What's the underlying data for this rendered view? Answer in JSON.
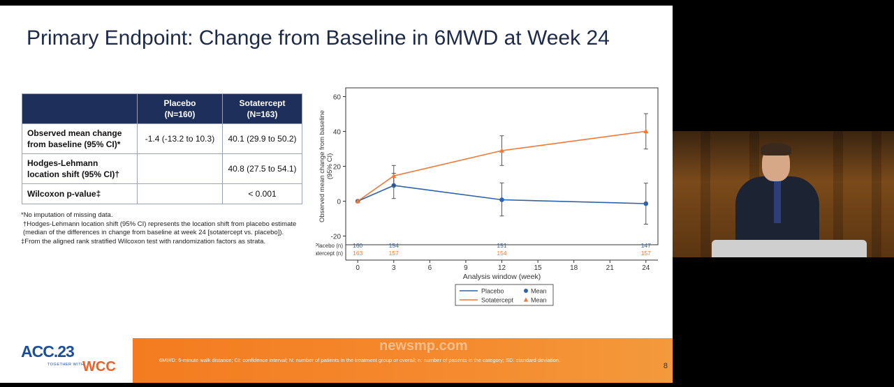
{
  "slide": {
    "title": "Primary Endpoint: Change from Baseline in 6MWD at Week 24",
    "page_number": "8",
    "bottom_note": "6MWD: 6-minute walk distance; CI: confidence interval; N: number of patients in the treatment group or overall; n: number of patients in the category; SD: standard deviation.",
    "watermark": "newsmp.com"
  },
  "logo": {
    "acc": "ACC.23",
    "sub": "TOGETHER WITH",
    "wcc": "WCC"
  },
  "table": {
    "headers": [
      "",
      "Placebo\n(N=160)",
      "Sotatercept\n(N=163)"
    ],
    "header_placebo_line1": "Placebo",
    "header_placebo_line2": "(N=160)",
    "header_sota_line1": "Sotatercept",
    "header_sota_line2": "(N=163)",
    "rows": [
      {
        "label1": "Observed mean change",
        "label2": "from baseline (95% CI)*",
        "placebo": "-1.4 (-13.2 to 10.3)",
        "sotatercept": "40.1 (29.9 to 50.2)"
      },
      {
        "label1": "Hodges-Lehmann",
        "label2": "location shift (95% CI)†",
        "placebo": "",
        "sotatercept": "40.8 (27.5 to 54.1)"
      },
      {
        "label1": "Wilcoxon p-value‡",
        "label2": "",
        "placebo": "",
        "sotatercept": "< 0.001"
      }
    ]
  },
  "footnotes": [
    "*No imputation of missing data.",
    "†Hodges-Lehmann location shift (95% CI)  represents the location shift from placebo estimate",
    " (median of the differences in change from baseline at week 24 [sotatercept vs. placebo]).",
    "‡From the aligned rank stratified Wilcoxon test with randomization factors as strata."
  ],
  "colors": {
    "placebo": "#2f63a8",
    "sotatercept": "#f07838",
    "header_bg": "#1f2f5c",
    "band": "#f47b20"
  },
  "chart_data": {
    "type": "line",
    "xlabel": "Analysis window (week)",
    "ylabel": "Observed mean change from baseline\n(95% CI)",
    "ylabel_line1": "Observed mean change from baseline",
    "ylabel_line2": "(95% CI)",
    "xlim": [
      -1,
      25
    ],
    "ylim": [
      -25,
      65
    ],
    "x_ticks": [
      0,
      3,
      6,
      9,
      12,
      15,
      18,
      21,
      24
    ],
    "x_tick_labels": [
      "0",
      "3",
      "6",
      "9",
      "12",
      "15",
      "18",
      "21",
      "24"
    ],
    "y_ticks": [
      -20,
      0,
      20,
      40,
      60
    ],
    "y_tick_labels": [
      "-20",
      "0",
      "20",
      "40",
      "60"
    ],
    "series": [
      {
        "name": "Placebo",
        "marker": "circle",
        "x": [
          0,
          3,
          12,
          24
        ],
        "y": [
          0,
          9,
          0.8,
          -1.4
        ],
        "ci_low": [
          null,
          1.5,
          -8.5,
          -13.2
        ],
        "ci_high": [
          null,
          16,
          10.5,
          10.3
        ]
      },
      {
        "name": "Sotatercept",
        "marker": "triangle",
        "x": [
          0,
          3,
          12,
          24
        ],
        "y": [
          0,
          14.5,
          29,
          40.1
        ],
        "ci_low": [
          null,
          9,
          20.5,
          29.9
        ],
        "ci_high": [
          null,
          20.5,
          37.5,
          50.2
        ]
      }
    ],
    "at_risk": [
      {
        "label": "Placebo (n)",
        "x": [
          0,
          3,
          12,
          24
        ],
        "values": [
          "160",
          "154",
          "151",
          "147"
        ]
      },
      {
        "label": "Sotatercept (n)",
        "x": [
          0,
          3,
          12,
          24
        ],
        "values": [
          "163",
          "157",
          "154",
          "157"
        ]
      }
    ],
    "legend": {
      "placement": "bottom",
      "entries": [
        {
          "line_label": "Placebo",
          "marker_label": "Mean"
        },
        {
          "line_label": "Sotatercept",
          "marker_label": "Mean"
        }
      ]
    },
    "grid": false
  }
}
